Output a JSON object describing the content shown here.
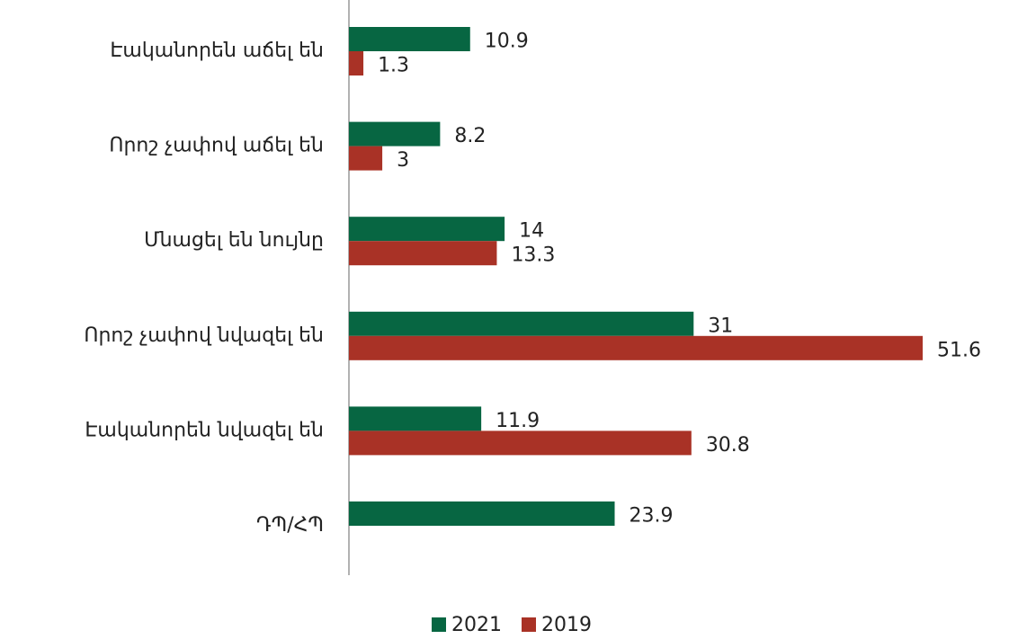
{
  "chart_data": {
    "type": "hbar",
    "categories": [
      "Էականորեն աճել են",
      "Որոշ չափով աճել են",
      "Մնացել են նույնը",
      "Որոշ չափով նվազել են",
      "Էականորեն նվազել են",
      "ԴՊ/ՀՊ"
    ],
    "series": [
      {
        "name": "2021",
        "color": "#076642",
        "values": [
          10.9,
          8.2,
          14,
          31,
          11.9,
          23.9
        ]
      },
      {
        "name": "2019",
        "color": "#a93226",
        "values": [
          1.3,
          3,
          13.3,
          51.6,
          30.8,
          null
        ]
      }
    ],
    "legend": "bottom"
  }
}
